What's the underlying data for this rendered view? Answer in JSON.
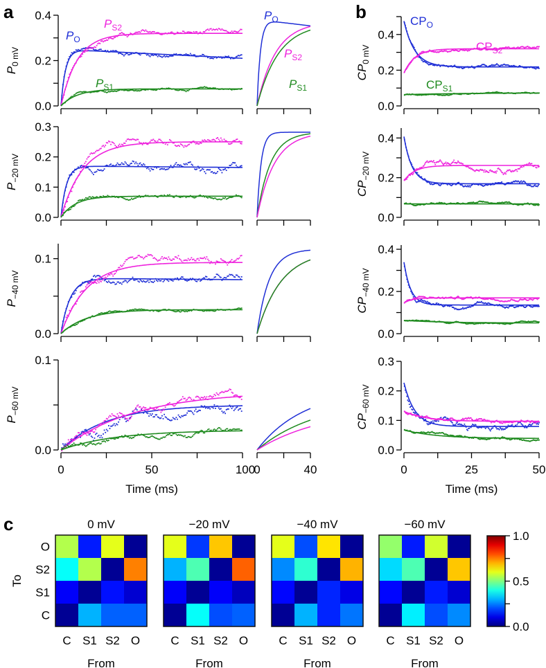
{
  "chart_data": [
    {
      "type": "line",
      "panel": "a",
      "xlabel": "Time (ms)",
      "xlim": [
        0,
        100
      ],
      "xticks": [
        0,
        50,
        100
      ],
      "inset_xlim": [
        0,
        40
      ],
      "inset_xticks": [
        0,
        40
      ],
      "colors": {
        "PO": "#1f2fd6",
        "PS2": "#ee22dd",
        "PS1": "#1e8a1e"
      },
      "rows": [
        {
          "ylabel": "P",
          "ylabel_sub": "0 mV",
          "ylim": [
            0,
            0.4
          ],
          "yticks": [
            "0.0",
            "0.2",
            "0.4"
          ],
          "minor_step": 0.1,
          "labels": [
            {
              "key": "PS2",
              "text": "P",
              "sub": "S2"
            },
            {
              "key": "PO",
              "text": "P",
              "sub": "O"
            },
            {
              "key": "PS1",
              "text": "P",
              "sub": "S1"
            }
          ],
          "series": [
            {
              "key": "PO",
              "ss": 0.25,
              "tau": 2.5,
              "late": 0.21,
              "noise": 0.012
            },
            {
              "key": "PS2",
              "ss": 0.32,
              "tau": 9,
              "late": 0.32,
              "noise": 0.012
            },
            {
              "key": "PS1",
              "ss": 0.075,
              "tau": 9,
              "late": 0.075,
              "noise": 0.006
            }
          ],
          "inset": [
            {
              "key": "PO",
              "final": 1.0,
              "peak": 1.0,
              "tau": 2.5,
              "end": 0.94
            },
            {
              "key": "PS2",
              "final": 0.99,
              "tau": 14
            },
            {
              "key": "PS1",
              "final": 0.97,
              "tau": 16
            }
          ],
          "inset_labels": [
            {
              "key": "PO",
              "text": "P",
              "sub": "O"
            },
            {
              "key": "PS2",
              "text": "P",
              "sub": "S2"
            },
            {
              "key": "PS1",
              "text": "P",
              "sub": "S1"
            }
          ]
        },
        {
          "ylabel": "P",
          "ylabel_sub": "−20 mV",
          "ylim": [
            0,
            0.3
          ],
          "yticks": [
            "0.0",
            "0.1",
            "0.2",
            "0.3"
          ],
          "minor_step": 0.1,
          "series": [
            {
              "key": "PO",
              "ss": 0.17,
              "tau": 3,
              "late": 0.165,
              "noise": 0.014
            },
            {
              "key": "PS2",
              "ss": 0.25,
              "tau": 12,
              "late": 0.25,
              "noise": 0.014
            },
            {
              "key": "PS1",
              "ss": 0.07,
              "tau": 8,
              "late": 0.07,
              "noise": 0.007
            }
          ],
          "inset": [
            {
              "key": "PO",
              "final": 1.0,
              "tau": 3
            },
            {
              "key": "PS1",
              "final": 1.0,
              "tau": 10
            },
            {
              "key": "PS2",
              "final": 1.0,
              "tau": 13
            }
          ]
        },
        {
          "ylabel": "P",
          "ylabel_sub": "−40 mV",
          "ylim": [
            0,
            0.12
          ],
          "yticks": [
            "0.0",
            "0.1"
          ],
          "minor_step": 0.05,
          "series": [
            {
              "key": "PO",
              "ss": 0.074,
              "tau": 5,
              "late": 0.072,
              "noise": 0.005
            },
            {
              "key": "PS2",
              "ss": 0.095,
              "tau": 14,
              "late": 0.095,
              "noise": 0.006
            },
            {
              "key": "PS1",
              "ss": 0.032,
              "tau": 14,
              "late": 0.032,
              "noise": 0.002
            }
          ],
          "inset": [
            {
              "key": "PO",
              "final": 1.0,
              "tau": 9
            },
            {
              "key": "PS2",
              "final": 0.98,
              "tau": 18
            },
            {
              "key": "PS1",
              "final": 0.98,
              "tau": 18
            }
          ]
        },
        {
          "ylabel": "P",
          "ylabel_sub": "−60 mV",
          "ylim": [
            0,
            0.1
          ],
          "yticks": [
            "0.0",
            "0.1"
          ],
          "minor_step": 0.05,
          "series": [
            {
              "key": "PO",
              "ss": 0.05,
              "tau": 25,
              "late": 0.05,
              "noise": 0.007
            },
            {
              "key": "PS2",
              "ss": 0.065,
              "tau": 40,
              "late": 0.065,
              "noise": 0.005
            },
            {
              "key": "PS1",
              "ss": 0.022,
              "tau": 30,
              "late": 0.022,
              "noise": 0.003
            }
          ],
          "inset": [
            {
              "key": "PO",
              "final": 1.0,
              "tau": 35,
              "scale": 0.72
            },
            {
              "key": "PS1",
              "final": 1.0,
              "tau": 45,
              "scale": 0.6
            },
            {
              "key": "PS2",
              "final": 1.0,
              "tau": 50,
              "scale": 0.5
            }
          ]
        }
      ]
    },
    {
      "type": "line",
      "panel": "b",
      "xlabel": "Time (ms)",
      "xlim": [
        0,
        50
      ],
      "xticks": [
        0,
        25,
        50
      ],
      "rows": [
        {
          "ylabel": "CP",
          "ylabel_sub": "0 mV",
          "ylim": [
            0,
            0.5
          ],
          "yticks": [
            "0.0",
            "0.2",
            "0.4"
          ],
          "minor_step": 0.1,
          "labels": [
            {
              "key": "PO",
              "text": "CP",
              "sub": "O"
            },
            {
              "key": "PS2",
              "text": "CP",
              "sub": "S2"
            },
            {
              "key": "PS1",
              "text": "CP",
              "sub": "S1"
            }
          ],
          "series": [
            {
              "key": "PO",
              "start": 0.49,
              "ss": 0.225,
              "tau": 4,
              "noise": 0.01
            },
            {
              "key": "PS2",
              "start": 0.19,
              "ss": 0.33,
              "tau": 4,
              "noise": 0.01
            },
            {
              "key": "PS1",
              "start": 0.065,
              "ss": 0.075,
              "tau": 20,
              "noise": 0.005
            }
          ]
        },
        {
          "ylabel": "CP",
          "ylabel_sub": "−20 mV",
          "ylim": [
            0,
            0.45
          ],
          "yticks": [
            "0.0",
            "0.2",
            "0.4"
          ],
          "minor_step": 0.1,
          "series": [
            {
              "key": "PO",
              "start": 0.42,
              "ss": 0.175,
              "tau": 3,
              "noise": 0.012
            },
            {
              "key": "PS2",
              "start": 0.19,
              "ss": 0.27,
              "tau": 4,
              "noise": 0.018
            },
            {
              "key": "PS1",
              "start": 0.07,
              "ss": 0.07,
              "tau": 10,
              "noise": 0.007
            }
          ]
        },
        {
          "ylabel": "CP",
          "ylabel_sub": "−40 mV",
          "ylim": [
            0,
            0.42
          ],
          "yticks": [
            "0.0",
            "0.2",
            "0.4"
          ],
          "minor_step": 0.1,
          "series": [
            {
              "key": "PO",
              "start": 0.35,
              "ss": 0.14,
              "tau": 2.5,
              "noise": 0.012
            },
            {
              "key": "PS2",
              "start": 0.15,
              "ss": 0.175,
              "tau": 3,
              "noise": 0.008
            },
            {
              "key": "PS1",
              "start": 0.065,
              "ss": 0.052,
              "tau": 15,
              "noise": 0.005
            }
          ]
        },
        {
          "ylabel": "CP",
          "ylabel_sub": "−60 mV",
          "ylim": [
            0,
            0.3
          ],
          "yticks": [
            "0.0",
            "0.1",
            "0.2",
            "0.3"
          ],
          "minor_step": 0.1,
          "series": [
            {
              "key": "PO",
              "start": 0.235,
              "ss": 0.082,
              "tau": 4,
              "noise": 0.014
            },
            {
              "key": "PS2",
              "start": 0.135,
              "ss": 0.1,
              "tau": 8,
              "noise": 0.008
            },
            {
              "key": "PS1",
              "start": 0.07,
              "ss": 0.04,
              "tau": 12,
              "noise": 0.005
            }
          ]
        }
      ]
    },
    {
      "type": "heatmap",
      "panel": "c",
      "row_axis_label": "To",
      "col_axis_label": "From",
      "rows": [
        "O",
        "S2",
        "S1",
        "C"
      ],
      "cols": [
        "C",
        "S1",
        "S2",
        "O"
      ],
      "colorbar": {
        "range": [
          0,
          1
        ],
        "ticks": [
          "1.0",
          "0.5",
          "0.0"
        ],
        "minor": [
          0.25,
          0.75
        ]
      },
      "maps": [
        {
          "title": "0 mV",
          "values": [
            [
              0.55,
              0.15,
              0.6,
              0.02
            ],
            [
              0.38,
              0.55,
              0.02,
              0.75
            ],
            [
              0.12,
              0.02,
              0.14,
              0.08
            ],
            [
              0.02,
              0.3,
              0.22,
              0.22
            ]
          ]
        },
        {
          "title": "−20 mV",
          "values": [
            [
              0.6,
              0.18,
              0.68,
              0.02
            ],
            [
              0.3,
              0.45,
              0.02,
              0.78
            ],
            [
              0.12,
              0.02,
              0.12,
              0.06
            ],
            [
              0.02,
              0.38,
              0.2,
              0.22
            ]
          ]
        },
        {
          "title": "−40 mV",
          "values": [
            [
              0.6,
              0.2,
              0.65,
              0.02
            ],
            [
              0.26,
              0.42,
              0.02,
              0.7
            ],
            [
              0.13,
              0.02,
              0.16,
              0.1
            ],
            [
              0.02,
              0.3,
              0.16,
              0.24
            ]
          ]
        },
        {
          "title": "−60 mV",
          "values": [
            [
              0.52,
              0.15,
              0.58,
              0.02
            ],
            [
              0.34,
              0.45,
              0.02,
              0.68
            ],
            [
              0.13,
              0.02,
              0.15,
              0.08
            ],
            [
              0.02,
              0.36,
              0.2,
              0.26
            ]
          ]
        }
      ]
    }
  ],
  "panel_letters": {
    "a": "a",
    "b": "b",
    "c": "c"
  }
}
